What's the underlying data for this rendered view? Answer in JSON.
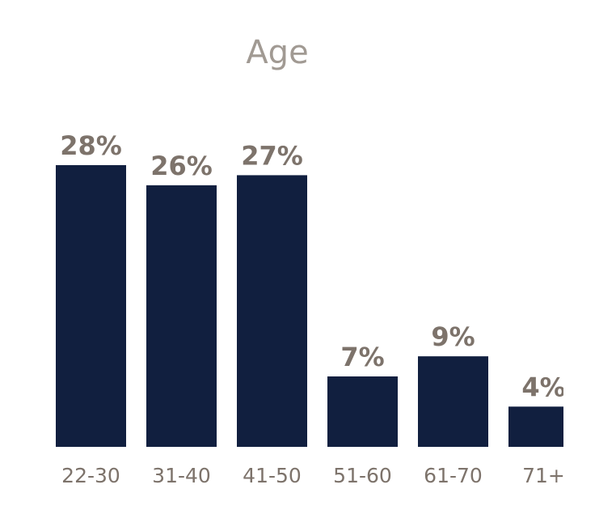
{
  "chart_data": {
    "type": "bar",
    "title": "Age",
    "categories": [
      "22-30",
      "31-40",
      "41-50",
      "51-60",
      "61-70",
      "71+"
    ],
    "values": [
      28,
      26,
      27,
      7,
      9,
      4
    ],
    "value_labels": [
      "28%",
      "26%",
      "27%",
      "7%",
      "9%",
      "4%"
    ],
    "ylim": [
      0,
      28
    ],
    "grid": false,
    "colors": {
      "bar": "#111f3f",
      "text": "#7d736b",
      "title": "#a19a93"
    }
  }
}
